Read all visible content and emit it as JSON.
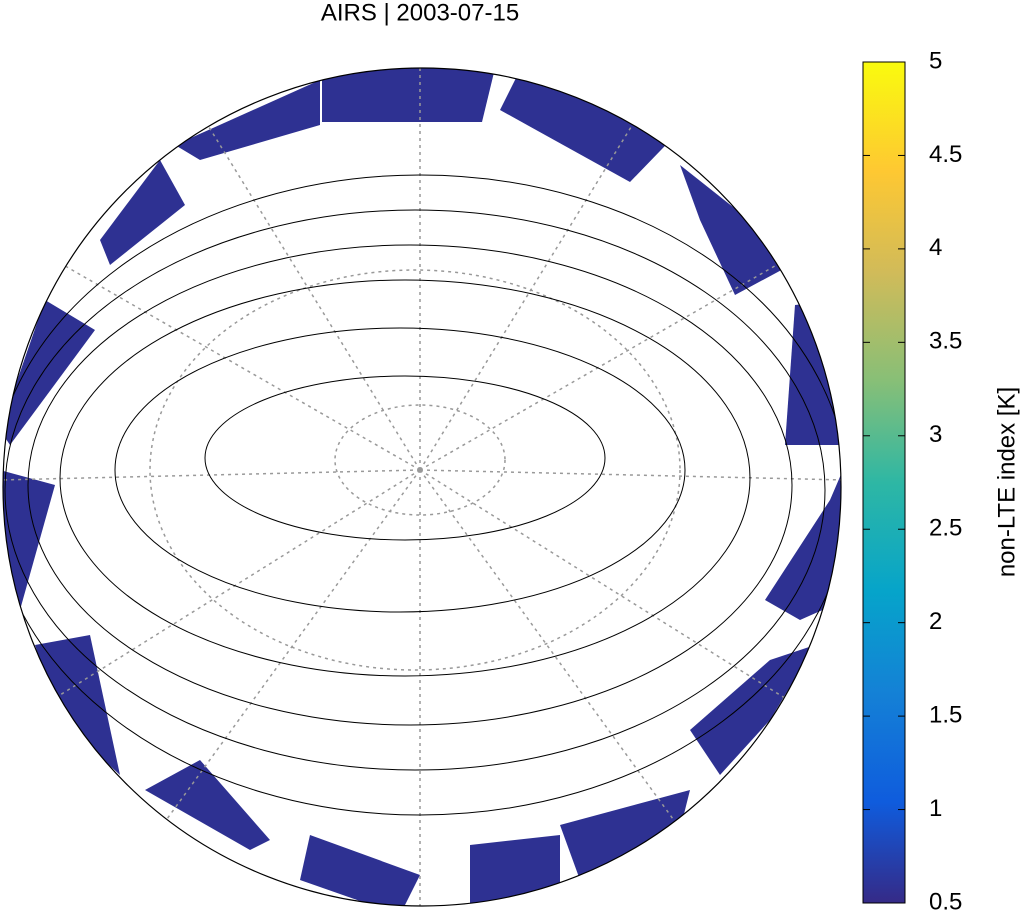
{
  "title": "AIRS | 2003-07-15",
  "colorbar": {
    "label": "non-LTE index [K]",
    "lim": [
      0.5,
      5
    ],
    "ticks": [
      0.5,
      1,
      1.5,
      2,
      2.5,
      3,
      3.5,
      4,
      4.5,
      5
    ]
  }
}
